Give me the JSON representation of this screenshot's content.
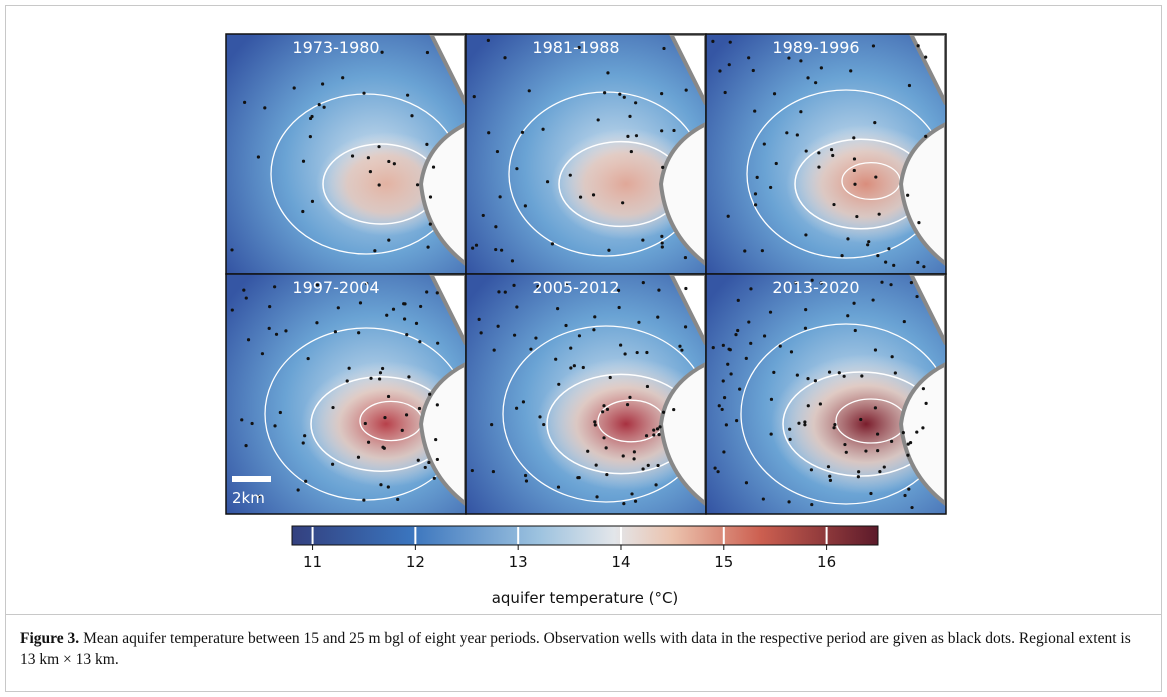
{
  "figure": {
    "panels": [
      "1973-1980",
      "1981-1988",
      "1989-1996",
      "1997-2004",
      "2005-2012",
      "2013-2020"
    ],
    "scale_bar": "2km",
    "colorbar": {
      "lim": [
        10.8,
        16.5
      ],
      "ticks": [
        11,
        12,
        13,
        14,
        15,
        16
      ],
      "label": "aquifer temperature (°C)"
    }
  },
  "caption": {
    "label": "Figure 3.",
    "text": "Mean aquifer temperature between 15 and 25 m bgl of eight year periods. Observation wells with data in the respective period are given as black dots. Regional extent is 13 km × 13 km."
  }
}
